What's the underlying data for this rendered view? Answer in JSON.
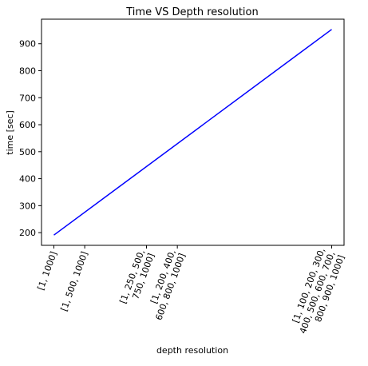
{
  "chart_data": {
    "type": "line",
    "title": "Time VS Depth resolution",
    "xlabel": "depth resolution",
    "ylabel": "time [sec]",
    "x": [
      2,
      3,
      5,
      6,
      11
    ],
    "x_tick_labels": [
      [
        "[1, 1000]"
      ],
      [
        "[1, 500, 1000]"
      ],
      [
        "[1, 250, 500,",
        "750, 1000]"
      ],
      [
        "[1, 200, 400,",
        "600, 800, 1000]"
      ],
      [
        "[1, 100, 200, 300,",
        "400, 500, 600, 700,",
        "800, 900, 1000]"
      ]
    ],
    "series": [
      {
        "x": [
          2,
          11
        ],
        "values": [
          191,
          953
        ],
        "color": "#0000ff"
      }
    ],
    "y_ticks": [
      200,
      300,
      400,
      500,
      600,
      700,
      800,
      900
    ],
    "xlim": [
      1.6,
      11.4
    ],
    "ylim": [
      153,
      991
    ],
    "grid": false
  }
}
